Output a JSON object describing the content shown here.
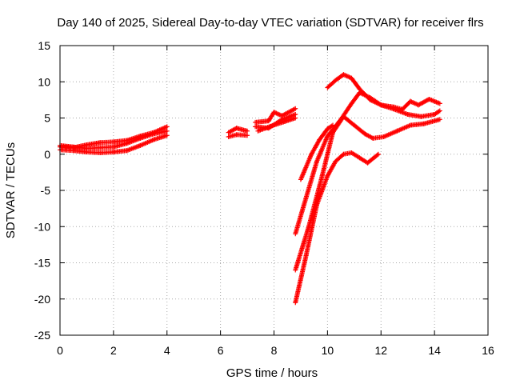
{
  "chart_data": {
    "type": "scatter",
    "title": "Day 140 of 2025, Sidereal Day-to-day VTEC variation (SDTVAR) for receiver flrs",
    "xlabel": "GPS time / hours",
    "ylabel": "SDTVAR / TECUs",
    "xlim": [
      0,
      16
    ],
    "ylim": [
      -25,
      15
    ],
    "xticks": [
      0,
      2,
      4,
      6,
      8,
      10,
      12,
      14,
      16
    ],
    "yticks": [
      -25,
      -20,
      -15,
      -10,
      -5,
      0,
      5,
      10,
      15
    ],
    "grid": true,
    "marker": "plus",
    "color": "#ff0000",
    "tracks": [
      [
        [
          0.0,
          1.2
        ],
        [
          0.5,
          1.0
        ],
        [
          1.0,
          0.8
        ],
        [
          1.5,
          0.9
        ],
        [
          2.0,
          1.0
        ],
        [
          2.5,
          1.5
        ],
        [
          3.0,
          2.2
        ],
        [
          3.5,
          2.8
        ],
        [
          4.0,
          3.2
        ]
      ],
      [
        [
          0.0,
          0.6
        ],
        [
          0.5,
          0.5
        ],
        [
          1.0,
          0.3
        ],
        [
          1.5,
          0.2
        ],
        [
          2.0,
          0.3
        ],
        [
          2.5,
          0.5
        ],
        [
          3.0,
          1.2
        ],
        [
          3.5,
          2.0
        ],
        [
          4.0,
          2.6
        ]
      ],
      [
        [
          0.0,
          1.0
        ],
        [
          0.5,
          0.9
        ],
        [
          1.0,
          1.3
        ],
        [
          1.5,
          1.6
        ],
        [
          2.0,
          1.7
        ],
        [
          2.5,
          1.9
        ],
        [
          3.0,
          2.5
        ],
        [
          3.5,
          3.0
        ],
        [
          4.0,
          3.8
        ]
      ],
      [
        [
          6.3,
          3.0
        ],
        [
          6.6,
          3.6
        ],
        [
          7.0,
          3.2
        ]
      ],
      [
        [
          6.3,
          2.4
        ],
        [
          6.6,
          2.7
        ],
        [
          7.0,
          2.6
        ]
      ],
      [
        [
          7.3,
          3.8
        ],
        [
          7.8,
          3.6
        ],
        [
          8.3,
          4.8
        ],
        [
          8.8,
          5.5
        ]
      ],
      [
        [
          7.3,
          4.4
        ],
        [
          7.8,
          4.6
        ],
        [
          8.0,
          5.8
        ],
        [
          8.3,
          5.3
        ],
        [
          8.8,
          6.3
        ]
      ],
      [
        [
          7.4,
          3.2
        ],
        [
          7.9,
          3.9
        ],
        [
          8.4,
          4.5
        ],
        [
          8.8,
          5.0
        ]
      ],
      [
        [
          8.8,
          -11.0
        ],
        [
          9.2,
          -6.0
        ],
        [
          9.6,
          -1.0
        ],
        [
          10.0,
          2.5
        ],
        [
          10.5,
          4.8
        ],
        [
          10.9,
          7.0
        ],
        [
          11.2,
          8.5
        ],
        [
          11.6,
          7.8
        ],
        [
          12.0,
          6.8
        ],
        [
          12.5,
          6.2
        ],
        [
          13.0,
          5.5
        ],
        [
          13.5,
          5.2
        ],
        [
          14.0,
          5.5
        ],
        [
          14.2,
          6.0
        ]
      ],
      [
        [
          8.8,
          -16.0
        ],
        [
          9.3,
          -10.0
        ],
        [
          9.8,
          -3.0
        ],
        [
          10.2,
          3.0
        ],
        [
          10.6,
          5.2
        ],
        [
          11.0,
          4.0
        ],
        [
          11.4,
          2.8
        ],
        [
          11.7,
          2.2
        ],
        [
          12.1,
          2.4
        ],
        [
          12.6,
          3.2
        ],
        [
          13.1,
          4.0
        ],
        [
          13.6,
          4.2
        ],
        [
          14.2,
          4.8
        ]
      ],
      [
        [
          8.8,
          -20.5
        ],
        [
          9.2,
          -14.0
        ],
        [
          9.6,
          -7.0
        ],
        [
          10.0,
          -3.0
        ],
        [
          10.3,
          -1.0
        ],
        [
          10.6,
          0.0
        ],
        [
          10.9,
          0.2
        ],
        [
          11.2,
          -0.5
        ],
        [
          11.5,
          -1.2
        ],
        [
          11.9,
          0.0
        ]
      ],
      [
        [
          9.0,
          -3.5
        ],
        [
          9.4,
          0.0
        ],
        [
          9.7,
          2.0
        ],
        [
          10.0,
          3.5
        ],
        [
          10.2,
          4.0
        ]
      ],
      [
        [
          10.0,
          9.2
        ],
        [
          10.3,
          10.2
        ],
        [
          10.6,
          11.0
        ],
        [
          10.9,
          10.5
        ],
        [
          11.2,
          9.0
        ],
        [
          11.6,
          7.5
        ],
        [
          12.0,
          6.8
        ],
        [
          12.5,
          6.5
        ],
        [
          12.8,
          6.2
        ],
        [
          13.1,
          7.3
        ],
        [
          13.4,
          6.8
        ],
        [
          13.8,
          7.6
        ],
        [
          14.2,
          7.0
        ]
      ]
    ]
  }
}
